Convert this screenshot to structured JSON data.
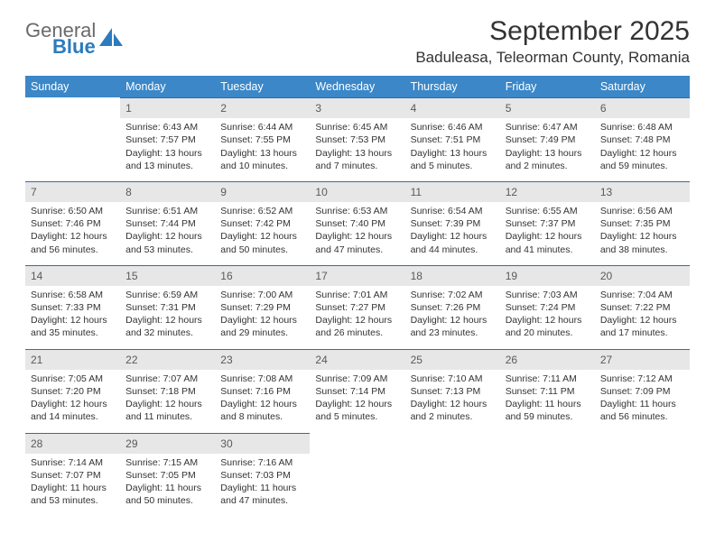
{
  "brand": {
    "name_top": "General",
    "name_bottom": "Blue"
  },
  "title": "September 2025",
  "location": "Baduleasa, Teleorman County, Romania",
  "colors": {
    "header_bg": "#3b87c8",
    "daynum_bg": "#e7e7e7",
    "row_border": "#2f6ea8",
    "logo_gray": "#6a6a6a",
    "logo_blue": "#2d7bbd"
  },
  "weekdays": [
    "Sunday",
    "Monday",
    "Tuesday",
    "Wednesday",
    "Thursday",
    "Friday",
    "Saturday"
  ],
  "weeks": [
    [
      {
        "n": "",
        "sr": "",
        "ss": "",
        "dl": ""
      },
      {
        "n": "1",
        "sr": "6:43 AM",
        "ss": "7:57 PM",
        "dl": "13 hours and 13 minutes."
      },
      {
        "n": "2",
        "sr": "6:44 AM",
        "ss": "7:55 PM",
        "dl": "13 hours and 10 minutes."
      },
      {
        "n": "3",
        "sr": "6:45 AM",
        "ss": "7:53 PM",
        "dl": "13 hours and 7 minutes."
      },
      {
        "n": "4",
        "sr": "6:46 AM",
        "ss": "7:51 PM",
        "dl": "13 hours and 5 minutes."
      },
      {
        "n": "5",
        "sr": "6:47 AM",
        "ss": "7:49 PM",
        "dl": "13 hours and 2 minutes."
      },
      {
        "n": "6",
        "sr": "6:48 AM",
        "ss": "7:48 PM",
        "dl": "12 hours and 59 minutes."
      }
    ],
    [
      {
        "n": "7",
        "sr": "6:50 AM",
        "ss": "7:46 PM",
        "dl": "12 hours and 56 minutes."
      },
      {
        "n": "8",
        "sr": "6:51 AM",
        "ss": "7:44 PM",
        "dl": "12 hours and 53 minutes."
      },
      {
        "n": "9",
        "sr": "6:52 AM",
        "ss": "7:42 PM",
        "dl": "12 hours and 50 minutes."
      },
      {
        "n": "10",
        "sr": "6:53 AM",
        "ss": "7:40 PM",
        "dl": "12 hours and 47 minutes."
      },
      {
        "n": "11",
        "sr": "6:54 AM",
        "ss": "7:39 PM",
        "dl": "12 hours and 44 minutes."
      },
      {
        "n": "12",
        "sr": "6:55 AM",
        "ss": "7:37 PM",
        "dl": "12 hours and 41 minutes."
      },
      {
        "n": "13",
        "sr": "6:56 AM",
        "ss": "7:35 PM",
        "dl": "12 hours and 38 minutes."
      }
    ],
    [
      {
        "n": "14",
        "sr": "6:58 AM",
        "ss": "7:33 PM",
        "dl": "12 hours and 35 minutes."
      },
      {
        "n": "15",
        "sr": "6:59 AM",
        "ss": "7:31 PM",
        "dl": "12 hours and 32 minutes."
      },
      {
        "n": "16",
        "sr": "7:00 AM",
        "ss": "7:29 PM",
        "dl": "12 hours and 29 minutes."
      },
      {
        "n": "17",
        "sr": "7:01 AM",
        "ss": "7:27 PM",
        "dl": "12 hours and 26 minutes."
      },
      {
        "n": "18",
        "sr": "7:02 AM",
        "ss": "7:26 PM",
        "dl": "12 hours and 23 minutes."
      },
      {
        "n": "19",
        "sr": "7:03 AM",
        "ss": "7:24 PM",
        "dl": "12 hours and 20 minutes."
      },
      {
        "n": "20",
        "sr": "7:04 AM",
        "ss": "7:22 PM",
        "dl": "12 hours and 17 minutes."
      }
    ],
    [
      {
        "n": "21",
        "sr": "7:05 AM",
        "ss": "7:20 PM",
        "dl": "12 hours and 14 minutes."
      },
      {
        "n": "22",
        "sr": "7:07 AM",
        "ss": "7:18 PM",
        "dl": "12 hours and 11 minutes."
      },
      {
        "n": "23",
        "sr": "7:08 AM",
        "ss": "7:16 PM",
        "dl": "12 hours and 8 minutes."
      },
      {
        "n": "24",
        "sr": "7:09 AM",
        "ss": "7:14 PM",
        "dl": "12 hours and 5 minutes."
      },
      {
        "n": "25",
        "sr": "7:10 AM",
        "ss": "7:13 PM",
        "dl": "12 hours and 2 minutes."
      },
      {
        "n": "26",
        "sr": "7:11 AM",
        "ss": "7:11 PM",
        "dl": "11 hours and 59 minutes."
      },
      {
        "n": "27",
        "sr": "7:12 AM",
        "ss": "7:09 PM",
        "dl": "11 hours and 56 minutes."
      }
    ],
    [
      {
        "n": "28",
        "sr": "7:14 AM",
        "ss": "7:07 PM",
        "dl": "11 hours and 53 minutes."
      },
      {
        "n": "29",
        "sr": "7:15 AM",
        "ss": "7:05 PM",
        "dl": "11 hours and 50 minutes."
      },
      {
        "n": "30",
        "sr": "7:16 AM",
        "ss": "7:03 PM",
        "dl": "11 hours and 47 minutes."
      },
      {
        "n": "",
        "sr": "",
        "ss": "",
        "dl": ""
      },
      {
        "n": "",
        "sr": "",
        "ss": "",
        "dl": ""
      },
      {
        "n": "",
        "sr": "",
        "ss": "",
        "dl": ""
      },
      {
        "n": "",
        "sr": "",
        "ss": "",
        "dl": ""
      }
    ]
  ],
  "labels": {
    "sunrise": "Sunrise:",
    "sunset": "Sunset:",
    "daylight": "Daylight:"
  }
}
